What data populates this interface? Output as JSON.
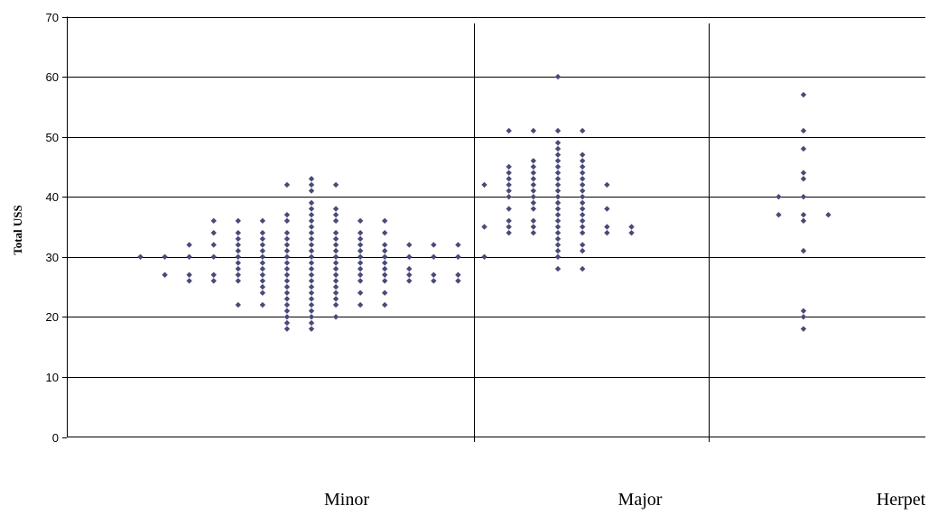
{
  "chart_data": {
    "type": "scatter",
    "title": "",
    "ylabel": "Total USS",
    "xlabel": "",
    "ylim": [
      0,
      70
    ],
    "yticks": [
      0,
      10,
      20,
      30,
      40,
      50,
      60,
      70
    ],
    "grid": true,
    "legend": "none",
    "marker_color": "#4a4a78",
    "categories": [
      "Minor",
      "Major",
      "Herpet"
    ],
    "x_axis_note": "x is the dot column index within the group",
    "series": [
      {
        "group": "Minor",
        "columns": [
          {
            "x": 1,
            "values": [
              30
            ]
          },
          {
            "x": 2,
            "values": [
              27,
              30
            ]
          },
          {
            "x": 3,
            "values": [
              26,
              27,
              30,
              32
            ]
          },
          {
            "x": 4,
            "values": [
              26,
              27,
              30,
              32,
              34,
              36
            ]
          },
          {
            "x": 5,
            "values": [
              22,
              26,
              27,
              28,
              29,
              30,
              31,
              32,
              33,
              34,
              36
            ]
          },
          {
            "x": 6,
            "values": [
              22,
              24,
              25,
              26,
              27,
              28,
              29,
              30,
              31,
              32,
              33,
              34,
              36
            ]
          },
          {
            "x": 7,
            "values": [
              18,
              19,
              20,
              21,
              22,
              23,
              24,
              25,
              26,
              27,
              28,
              29,
              30,
              31,
              32,
              33,
              34,
              36,
              37,
              42
            ]
          },
          {
            "x": 8,
            "values": [
              18,
              19,
              20,
              21,
              22,
              23,
              24,
              25,
              26,
              27,
              28,
              29,
              30,
              31,
              32,
              33,
              34,
              35,
              36,
              37,
              38,
              39,
              41,
              42,
              43
            ]
          },
          {
            "x": 9,
            "values": [
              20,
              22,
              23,
              24,
              25,
              26,
              27,
              28,
              29,
              30,
              31,
              32,
              33,
              34,
              36,
              37,
              38,
              42
            ]
          },
          {
            "x": 10,
            "values": [
              22,
              24,
              26,
              27,
              28,
              29,
              30,
              31,
              32,
              33,
              34,
              36
            ]
          },
          {
            "x": 11,
            "values": [
              22,
              24,
              26,
              27,
              28,
              29,
              30,
              31,
              32,
              34,
              36
            ]
          },
          {
            "x": 12,
            "values": [
              26,
              27,
              28,
              30,
              32
            ]
          },
          {
            "x": 13,
            "values": [
              26,
              27,
              30,
              32
            ]
          },
          {
            "x": 14,
            "values": [
              26,
              27,
              30,
              32
            ]
          }
        ]
      },
      {
        "group": "Major",
        "columns": [
          {
            "x": 1,
            "values": [
              30,
              35,
              42
            ]
          },
          {
            "x": 2,
            "values": [
              34,
              35,
              36,
              38,
              40,
              41,
              42,
              43,
              44,
              45,
              51
            ]
          },
          {
            "x": 3,
            "values": [
              34,
              35,
              36,
              38,
              39,
              40,
              41,
              42,
              43,
              44,
              45,
              46,
              51
            ]
          },
          {
            "x": 4,
            "values": [
              28,
              30,
              31,
              32,
              33,
              34,
              35,
              36,
              37,
              38,
              39,
              40,
              41,
              42,
              43,
              44,
              45,
              46,
              47,
              48,
              49,
              51,
              60
            ]
          },
          {
            "x": 5,
            "values": [
              28,
              31,
              32,
              34,
              35,
              36,
              37,
              38,
              39,
              40,
              41,
              42,
              43,
              44,
              45,
              46,
              47,
              51
            ]
          },
          {
            "x": 6,
            "values": [
              34,
              35,
              38,
              42
            ]
          },
          {
            "x": 7,
            "values": [
              34,
              35
            ]
          }
        ]
      },
      {
        "group": "Herpet",
        "columns": [
          {
            "x": 1,
            "values": [
              37,
              40
            ]
          },
          {
            "x": 2,
            "values": [
              18,
              20,
              21,
              31,
              36,
              37,
              40,
              43,
              44,
              48,
              51,
              57
            ]
          },
          {
            "x": 3,
            "values": [
              37
            ]
          }
        ]
      }
    ]
  }
}
